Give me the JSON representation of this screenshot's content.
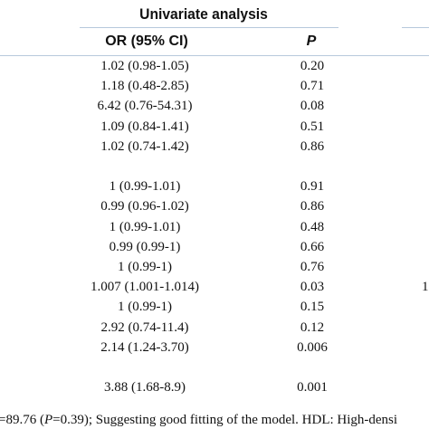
{
  "table": {
    "group_header": "Univariate analysis",
    "columns": {
      "or": "OR (95% CI)",
      "p": "P"
    },
    "rows": [
      {
        "or": "1.02 (0.98-1.05)",
        "p": "0.20",
        "edge": ""
      },
      {
        "or": "1.18 (0.48-2.85)",
        "p": "0.71",
        "edge": ""
      },
      {
        "or": "6.42 (0.76-54.31)",
        "p": "0.08",
        "edge": ""
      },
      {
        "or": "1.09 (0.84-1.41)",
        "p": "0.51",
        "edge": ""
      },
      {
        "or": "1.02 (0.74-1.42)",
        "p": "0.86",
        "edge": ""
      },
      {
        "or": "",
        "p": "",
        "edge": ""
      },
      {
        "or": "1 (0.99-1.01)",
        "p": "0.91",
        "edge": ""
      },
      {
        "or": "0.99 (0.96-1.02)",
        "p": "0.86",
        "edge": ""
      },
      {
        "or": "1 (0.99-1.01)",
        "p": "0.48",
        "edge": ""
      },
      {
        "or": "0.99 (0.99-1)",
        "p": "0.66",
        "edge": ""
      },
      {
        "or": "1 (0.99-1)",
        "p": "0.76",
        "edge": ""
      },
      {
        "or": "1.007 (1.001-1.014)",
        "p": "0.03",
        "edge": "1"
      },
      {
        "or": "1 (0.99-1)",
        "p": "0.15",
        "edge": ""
      },
      {
        "or": "2.92 (0.74-11.4)",
        "p": "0.12",
        "edge": ""
      },
      {
        "or": "2.14 (1.24-3.70)",
        "p": "0.006",
        "edge": ""
      },
      {
        "or": "",
        "p": "",
        "edge": ""
      },
      {
        "or": "3.88 (1.68-8.9)",
        "p": "0.001",
        "edge": ""
      }
    ]
  },
  "footnote": {
    "prefix": "=89.76 (",
    "p_symbol": "P",
    "suffix": "=0.39); Suggesting good fitting of the model. HDL: High-densi"
  }
}
